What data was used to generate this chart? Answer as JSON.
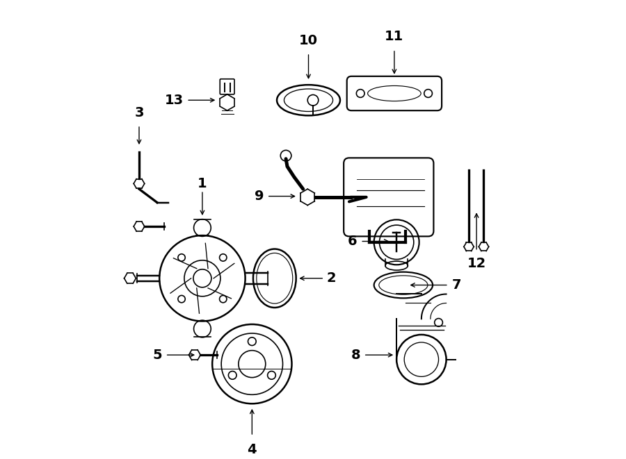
{
  "bg_color": "#ffffff",
  "line_color": "#000000",
  "font_size_num": 14,
  "font_size_title": 13
}
